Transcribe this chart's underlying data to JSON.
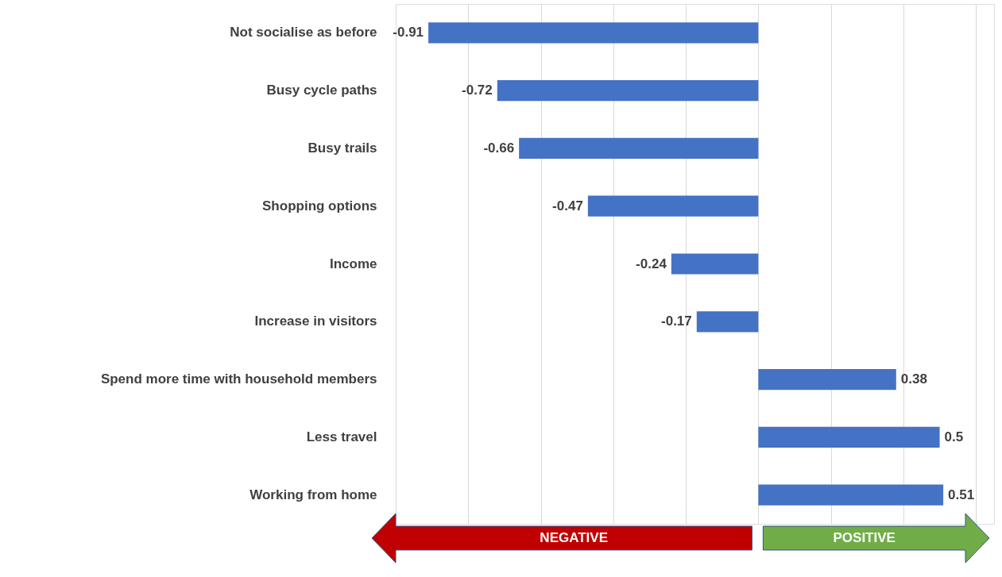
{
  "chart_data": {
    "type": "bar",
    "orientation": "horizontal",
    "categories": [
      "Not socialise as before",
      "Busy cycle paths",
      "Busy trails",
      "Shopping options",
      "Income",
      "Increase in visitors",
      "Spend more time with household members",
      "Less travel",
      "Working from home"
    ],
    "series": [
      {
        "color": "#4472c4",
        "values": [
          -0.91,
          -0.72,
          -0.66,
          -0.47,
          -0.24,
          -0.17,
          0.38,
          0.5,
          0.51
        ]
      }
    ],
    "xlim": [
      -1,
      0.65
    ],
    "xticks": [
      {
        "value": -1,
        "label": null
      },
      {
        "value": -0.8,
        "label": null
      },
      {
        "value": -0.6,
        "label": null
      },
      {
        "value": -0.4,
        "label": null
      },
      {
        "value": -0.2,
        "label": null
      },
      {
        "value": 0,
        "label": null
      },
      {
        "value": 0.2,
        "label": null
      },
      {
        "value": 0.4,
        "label": null
      },
      {
        "value": 0.6,
        "label": null
      }
    ],
    "tick_labels": "y",
    "grid": "x",
    "data_labels": true,
    "annotations": [
      "NEGATIVE",
      "POSITIVE"
    ]
  }
}
